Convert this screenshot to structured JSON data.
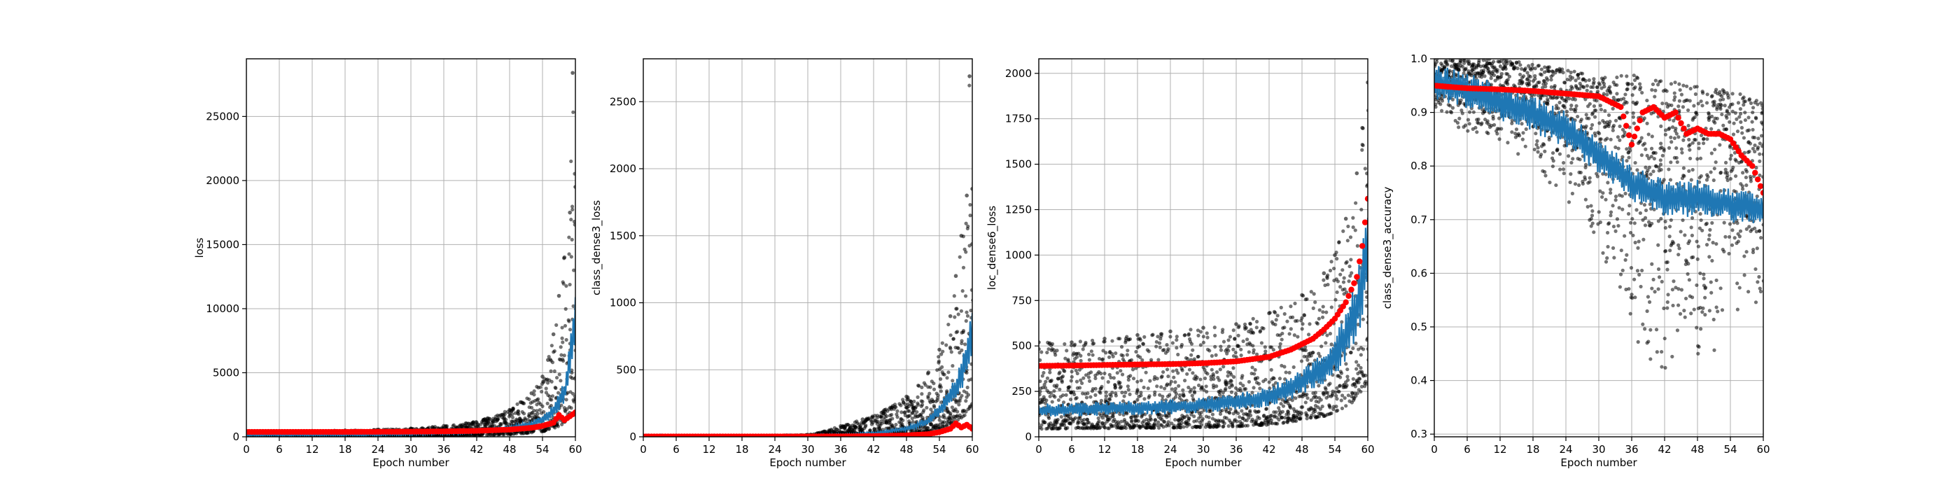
{
  "chart_data": [
    {
      "type": "scatter",
      "title": "",
      "xlabel": "Epoch number",
      "ylabel": "loss",
      "xlim": [
        0,
        60
      ],
      "ylim": [
        0,
        29500
      ],
      "xticks": [
        "0",
        "6",
        "12",
        "18",
        "24",
        "30",
        "36",
        "42",
        "48",
        "54",
        "60"
      ],
      "yticks": [
        "0",
        "5000",
        "10000",
        "15000",
        "20000",
        "25000"
      ],
      "grid": true,
      "series": [
        {
          "kind": "scatter",
          "color": "#000000",
          "description_points": "per-batch values",
          "x": [
            0,
            6,
            12,
            18,
            24,
            30,
            36,
            40,
            44,
            48,
            50,
            52,
            54,
            55,
            56,
            57,
            58,
            59,
            59.5,
            60
          ],
          "y": [
            400,
            420,
            460,
            500,
            560,
            650,
            850,
            1050,
            1450,
            2100,
            2700,
            3400,
            4700,
            6000,
            8000,
            11000,
            14000,
            17500,
            28400,
            19500
          ]
        },
        {
          "kind": "line",
          "color": "#1f77b4",
          "x": [
            0,
            6,
            12,
            18,
            24,
            30,
            36,
            42,
            48,
            52,
            54,
            56,
            58,
            59,
            60
          ],
          "y": [
            150,
            160,
            170,
            180,
            200,
            240,
            300,
            400,
            650,
            1000,
            1400,
            2000,
            3500,
            6000,
            9000
          ]
        },
        {
          "kind": "markers",
          "color": "#ff0000",
          "x": [
            0,
            6,
            12,
            18,
            24,
            30,
            36,
            42,
            48,
            52,
            54,
            56,
            57,
            58,
            59,
            60
          ],
          "y": [
            380,
            380,
            380,
            380,
            390,
            400,
            420,
            460,
            560,
            700,
            850,
            1100,
            1700,
            1300,
            1600,
            1900
          ]
        }
      ]
    },
    {
      "type": "scatter",
      "title": "",
      "xlabel": "Epoch number",
      "ylabel": "class_dense3_loss",
      "xlim": [
        0,
        60
      ],
      "ylim": [
        0,
        2820
      ],
      "xticks": [
        "0",
        "6",
        "12",
        "18",
        "24",
        "30",
        "36",
        "42",
        "48",
        "54",
        "60"
      ],
      "yticks": [
        "0",
        "500",
        "1000",
        "1500",
        "2000",
        "2500"
      ],
      "grid": true,
      "series": [
        {
          "kind": "scatter",
          "color": "#000000",
          "x": [
            0,
            6,
            12,
            18,
            24,
            30,
            33,
            36,
            40,
            44,
            48,
            52,
            54,
            56,
            57,
            58,
            59,
            59.5,
            60
          ],
          "y": [
            3,
            4,
            5,
            7,
            10,
            15,
            40,
            80,
            130,
            200,
            300,
            480,
            650,
            900,
            1200,
            1500,
            1800,
            2690,
            1850
          ]
        },
        {
          "kind": "line",
          "color": "#1f77b4",
          "x": [
            0,
            12,
            24,
            30,
            36,
            42,
            48,
            52,
            54,
            56,
            58,
            59,
            60
          ],
          "y": [
            1,
            1,
            2,
            4,
            10,
            25,
            60,
            120,
            200,
            300,
            450,
            600,
            800
          ]
        },
        {
          "kind": "markers",
          "color": "#ff0000",
          "x": [
            0,
            12,
            24,
            36,
            42,
            48,
            52,
            54,
            56,
            57,
            58,
            59,
            60
          ],
          "y": [
            2,
            2,
            2,
            3,
            5,
            10,
            20,
            35,
            60,
            100,
            70,
            90,
            60
          ]
        }
      ]
    },
    {
      "type": "scatter",
      "title": "",
      "xlabel": "Epoch number",
      "ylabel": "loc_dense6_loss",
      "xlim": [
        0,
        60
      ],
      "ylim": [
        0,
        2080
      ],
      "xticks": [
        "0",
        "6",
        "12",
        "18",
        "24",
        "30",
        "36",
        "42",
        "48",
        "54",
        "60"
      ],
      "yticks": [
        "0",
        "250",
        "500",
        "750",
        "1000",
        "1250",
        "1500",
        "1750",
        "2000"
      ],
      "grid": true,
      "series": [
        {
          "kind": "scatter",
          "color": "#000000",
          "x": [
            0,
            6,
            12,
            18,
            24,
            30,
            36,
            42,
            48,
            52,
            54,
            56,
            58,
            59,
            60
          ],
          "y": [
            520,
            520,
            540,
            560,
            580,
            600,
            620,
            680,
            780,
            900,
            1000,
            1200,
            1450,
            1700,
            1950
          ]
        },
        {
          "kind": "line",
          "color": "#1f77b4",
          "x": [
            0,
            6,
            12,
            18,
            24,
            30,
            36,
            42,
            48,
            52,
            54,
            56,
            58,
            59,
            60
          ],
          "y": [
            145,
            150,
            155,
            160,
            165,
            175,
            190,
            220,
            300,
            380,
            450,
            550,
            700,
            850,
            1000
          ]
        },
        {
          "kind": "markers",
          "color": "#ff0000",
          "x": [
            0,
            6,
            12,
            18,
            24,
            30,
            36,
            42,
            46,
            50,
            52,
            54,
            56,
            58,
            59,
            60
          ],
          "y": [
            390,
            392,
            395,
            398,
            400,
            405,
            415,
            440,
            480,
            540,
            590,
            650,
            740,
            880,
            1050,
            1310
          ]
        }
      ]
    },
    {
      "type": "scatter",
      "title": "",
      "xlabel": "Epoch number",
      "ylabel": "class_dense3_accuracy",
      "xlim": [
        0,
        60
      ],
      "ylim": [
        0.295,
        1.0
      ],
      "xticks": [
        "0",
        "6",
        "12",
        "18",
        "24",
        "30",
        "36",
        "42",
        "48",
        "54",
        "60"
      ],
      "yticks": [
        "0.3",
        "0.4",
        "0.5",
        "0.6",
        "0.7",
        "0.8",
        "0.9",
        "1.0"
      ],
      "grid": true,
      "series": [
        {
          "kind": "scatter",
          "color": "#000000",
          "x": [
            0,
            6,
            12,
            18,
            24,
            30,
            36,
            42,
            48,
            54,
            60
          ],
          "y_min": [
            0.88,
            0.85,
            0.83,
            0.8,
            0.72,
            0.62,
            0.47,
            0.33,
            0.37,
            0.5,
            0.52
          ],
          "y_max": [
            1.0,
            1.0,
            1.0,
            0.99,
            0.98,
            0.97,
            0.97,
            0.96,
            0.95,
            0.94,
            0.92
          ]
        },
        {
          "kind": "line",
          "color": "#1f77b4",
          "x": [
            0,
            6,
            12,
            18,
            24,
            30,
            36,
            42,
            48,
            54,
            60
          ],
          "y": [
            0.955,
            0.94,
            0.92,
            0.895,
            0.87,
            0.82,
            0.77,
            0.74,
            0.74,
            0.73,
            0.72
          ]
        },
        {
          "kind": "markers",
          "color": "#ff0000",
          "x": [
            0,
            6,
            12,
            18,
            24,
            30,
            32,
            34,
            36,
            38,
            40,
            42,
            44,
            46,
            48,
            50,
            52,
            54,
            56,
            58,
            60
          ],
          "y": [
            0.95,
            0.945,
            0.943,
            0.94,
            0.935,
            0.93,
            0.92,
            0.91,
            0.84,
            0.9,
            0.91,
            0.89,
            0.9,
            0.86,
            0.87,
            0.86,
            0.86,
            0.85,
            0.82,
            0.8,
            0.75
          ]
        }
      ]
    }
  ]
}
